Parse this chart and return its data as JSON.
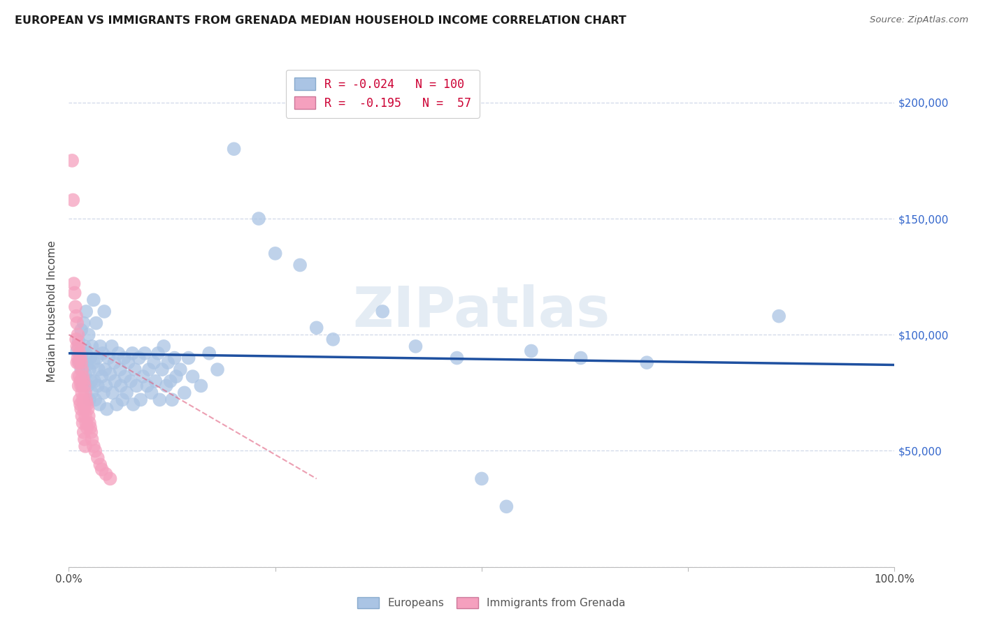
{
  "title": "EUROPEAN VS IMMIGRANTS FROM GRENADA MEDIAN HOUSEHOLD INCOME CORRELATION CHART",
  "source": "Source: ZipAtlas.com",
  "ylabel": "Median Household Income",
  "xlim": [
    0,
    1.0
  ],
  "ylim": [
    0,
    220000
  ],
  "yticks": [
    0,
    50000,
    100000,
    150000,
    200000
  ],
  "xticks": [
    0,
    0.25,
    0.5,
    0.75,
    1.0
  ],
  "xtick_labels": [
    "0.0%",
    "",
    "",
    "",
    "100.0%"
  ],
  "ytick_labels_right": [
    "$50,000",
    "$100,000",
    "$150,000",
    "$200,000"
  ],
  "watermark": "ZIPatlas",
  "blue_color": "#aac4e4",
  "pink_color": "#f5a0be",
  "blue_line_color": "#1e50a0",
  "pink_line_color": "#e06080",
  "legend_r_blue": "R = -0.024",
  "legend_n_blue": "N = 100",
  "legend_r_pink": "R =  -0.195",
  "legend_n_pink": "N =  57",
  "blue_scatter": [
    [
      0.01,
      93000
    ],
    [
      0.012,
      97000
    ],
    [
      0.013,
      88000
    ],
    [
      0.015,
      102000
    ],
    [
      0.015,
      85000
    ],
    [
      0.016,
      92000
    ],
    [
      0.017,
      78000
    ],
    [
      0.018,
      105000
    ],
    [
      0.018,
      88000
    ],
    [
      0.019,
      95000
    ],
    [
      0.02,
      83000
    ],
    [
      0.021,
      110000
    ],
    [
      0.021,
      92000
    ],
    [
      0.022,
      87000
    ],
    [
      0.023,
      78000
    ],
    [
      0.024,
      100000
    ],
    [
      0.025,
      85000
    ],
    [
      0.025,
      72000
    ],
    [
      0.026,
      90000
    ],
    [
      0.027,
      80000
    ],
    [
      0.028,
      95000
    ],
    [
      0.028,
      75000
    ],
    [
      0.03,
      88000
    ],
    [
      0.03,
      115000
    ],
    [
      0.031,
      80000
    ],
    [
      0.032,
      72000
    ],
    [
      0.033,
      105000
    ],
    [
      0.034,
      90000
    ],
    [
      0.035,
      78000
    ],
    [
      0.036,
      85000
    ],
    [
      0.037,
      70000
    ],
    [
      0.038,
      95000
    ],
    [
      0.04,
      82000
    ],
    [
      0.041,
      92000
    ],
    [
      0.042,
      75000
    ],
    [
      0.043,
      110000
    ],
    [
      0.044,
      85000
    ],
    [
      0.045,
      78000
    ],
    [
      0.046,
      68000
    ],
    [
      0.048,
      90000
    ],
    [
      0.05,
      83000
    ],
    [
      0.052,
      95000
    ],
    [
      0.053,
      75000
    ],
    [
      0.055,
      88000
    ],
    [
      0.056,
      80000
    ],
    [
      0.058,
      70000
    ],
    [
      0.06,
      92000
    ],
    [
      0.062,
      85000
    ],
    [
      0.063,
      78000
    ],
    [
      0.065,
      72000
    ],
    [
      0.067,
      90000
    ],
    [
      0.068,
      82000
    ],
    [
      0.07,
      75000
    ],
    [
      0.072,
      88000
    ],
    [
      0.075,
      80000
    ],
    [
      0.077,
      92000
    ],
    [
      0.078,
      70000
    ],
    [
      0.08,
      85000
    ],
    [
      0.082,
      78000
    ],
    [
      0.085,
      90000
    ],
    [
      0.087,
      72000
    ],
    [
      0.09,
      82000
    ],
    [
      0.092,
      92000
    ],
    [
      0.095,
      78000
    ],
    [
      0.097,
      85000
    ],
    [
      0.1,
      75000
    ],
    [
      0.103,
      88000
    ],
    [
      0.105,
      80000
    ],
    [
      0.108,
      92000
    ],
    [
      0.11,
      72000
    ],
    [
      0.113,
      85000
    ],
    [
      0.115,
      95000
    ],
    [
      0.118,
      78000
    ],
    [
      0.12,
      88000
    ],
    [
      0.123,
      80000
    ],
    [
      0.125,
      72000
    ],
    [
      0.128,
      90000
    ],
    [
      0.13,
      82000
    ],
    [
      0.135,
      85000
    ],
    [
      0.14,
      75000
    ],
    [
      0.145,
      90000
    ],
    [
      0.15,
      82000
    ],
    [
      0.16,
      78000
    ],
    [
      0.17,
      92000
    ],
    [
      0.18,
      85000
    ],
    [
      0.2,
      180000
    ],
    [
      0.23,
      150000
    ],
    [
      0.25,
      135000
    ],
    [
      0.28,
      130000
    ],
    [
      0.3,
      103000
    ],
    [
      0.32,
      98000
    ],
    [
      0.38,
      110000
    ],
    [
      0.42,
      95000
    ],
    [
      0.47,
      90000
    ],
    [
      0.5,
      38000
    ],
    [
      0.53,
      26000
    ],
    [
      0.56,
      93000
    ],
    [
      0.62,
      90000
    ],
    [
      0.7,
      88000
    ],
    [
      0.86,
      108000
    ]
  ],
  "pink_scatter": [
    [
      0.004,
      175000
    ],
    [
      0.005,
      158000
    ],
    [
      0.006,
      122000
    ],
    [
      0.007,
      118000
    ],
    [
      0.008,
      112000
    ],
    [
      0.009,
      108000
    ],
    [
      0.009,
      98000
    ],
    [
      0.01,
      105000
    ],
    [
      0.01,
      95000
    ],
    [
      0.01,
      88000
    ],
    [
      0.011,
      100000
    ],
    [
      0.011,
      90000
    ],
    [
      0.011,
      82000
    ],
    [
      0.012,
      95000
    ],
    [
      0.012,
      88000
    ],
    [
      0.012,
      78000
    ],
    [
      0.013,
      92000
    ],
    [
      0.013,
      82000
    ],
    [
      0.013,
      72000
    ],
    [
      0.014,
      90000
    ],
    [
      0.014,
      80000
    ],
    [
      0.014,
      70000
    ],
    [
      0.015,
      88000
    ],
    [
      0.015,
      78000
    ],
    [
      0.015,
      68000
    ],
    [
      0.016,
      85000
    ],
    [
      0.016,
      75000
    ],
    [
      0.016,
      65000
    ],
    [
      0.017,
      82000
    ],
    [
      0.017,
      72000
    ],
    [
      0.017,
      62000
    ],
    [
      0.018,
      80000
    ],
    [
      0.018,
      70000
    ],
    [
      0.018,
      58000
    ],
    [
      0.019,
      78000
    ],
    [
      0.019,
      68000
    ],
    [
      0.019,
      55000
    ],
    [
      0.02,
      75000
    ],
    [
      0.02,
      65000
    ],
    [
      0.02,
      52000
    ],
    [
      0.021,
      72000
    ],
    [
      0.021,
      62000
    ],
    [
      0.022,
      70000
    ],
    [
      0.022,
      60000
    ],
    [
      0.023,
      68000
    ],
    [
      0.024,
      65000
    ],
    [
      0.025,
      62000
    ],
    [
      0.026,
      60000
    ],
    [
      0.027,
      58000
    ],
    [
      0.028,
      55000
    ],
    [
      0.03,
      52000
    ],
    [
      0.032,
      50000
    ],
    [
      0.035,
      47000
    ],
    [
      0.038,
      44000
    ],
    [
      0.04,
      42000
    ],
    [
      0.045,
      40000
    ],
    [
      0.05,
      38000
    ]
  ]
}
